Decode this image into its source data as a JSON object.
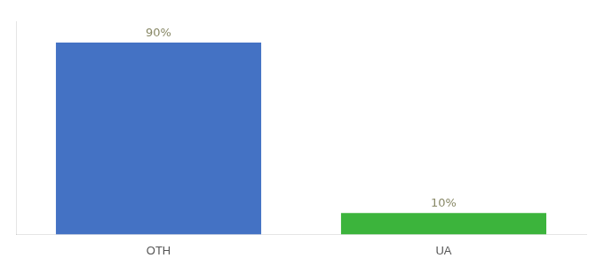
{
  "chart_data": {
    "type": "bar",
    "categories": [
      "OTH",
      "UA"
    ],
    "values": [
      90,
      10
    ],
    "colors": [
      "#4472c4",
      "#3cb43c"
    ],
    "value_labels": [
      "90%",
      "10%"
    ],
    "data_labels": true,
    "ylim": [
      0,
      100
    ],
    "tick_labels": "x",
    "grid": false
  }
}
